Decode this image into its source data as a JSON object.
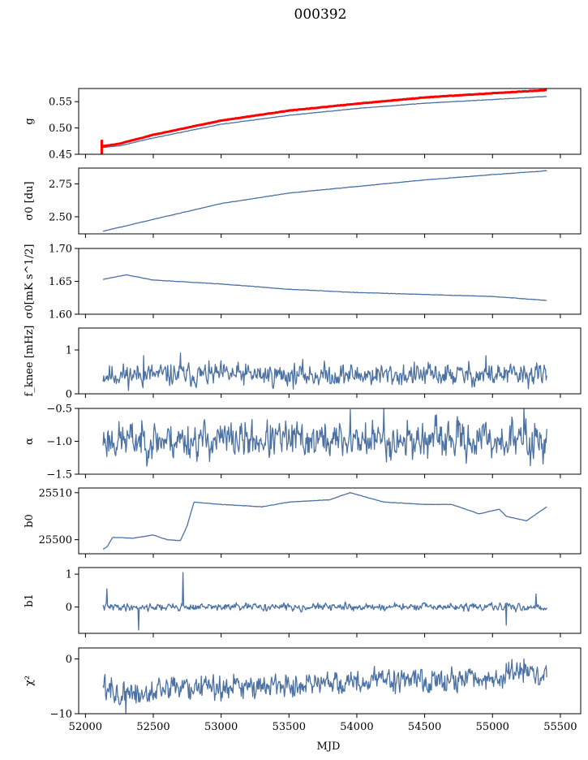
{
  "figure": {
    "title": "000392",
    "xlabel": "MJD"
  },
  "colors": {
    "series": "#4c72a4",
    "highlight": "#ff0000",
    "frame": "#000000"
  },
  "chart_data": {
    "type": "line",
    "x_range": [
      51950,
      55650
    ],
    "x_ticks": [
      52000,
      52500,
      53000,
      53500,
      54000,
      54500,
      55000,
      55500
    ],
    "x_tick_labels": [
      "52000",
      "52500",
      "53000",
      "53500",
      "54000",
      "54500",
      "55000",
      "55500"
    ],
    "xlabel": "MJD",
    "title": "000392",
    "panels": [
      {
        "key": "g",
        "ylabel": "g",
        "ylim": [
          0.45,
          0.575
        ],
        "yticks": [
          0.45,
          0.5,
          0.55
        ],
        "ytick_labels": [
          "0.45",
          "0.50",
          "0.55"
        ],
        "series": [
          {
            "color": "series",
            "style": "thin",
            "x": [
              52120,
              52250,
              52500,
              53000,
              53500,
              54000,
              54500,
              55000,
              55400
            ],
            "y": [
              0.463,
              0.466,
              0.481,
              0.507,
              0.524,
              0.537,
              0.547,
              0.554,
              0.56
            ]
          },
          {
            "color": "highlight",
            "style": "thick",
            "x": [
              52120,
              52250,
              52500,
              53000,
              53500,
              54000,
              54500,
              55000,
              55400
            ],
            "y": [
              0.465,
              0.47,
              0.487,
              0.514,
              0.533,
              0.546,
              0.558,
              0.566,
              0.572
            ]
          }
        ]
      },
      {
        "key": "sigma0_du",
        "ylabel": "σ0 [du]",
        "ylim": [
          2.37,
          2.87
        ],
        "yticks": [
          2.5,
          2.75
        ],
        "ytick_labels": [
          "2.50",
          "2.75"
        ],
        "series": [
          {
            "color": "series",
            "style": "thin",
            "x": [
              52130,
              52500,
              53000,
              53500,
              54000,
              54500,
              55000,
              55400
            ],
            "y": [
              2.39,
              2.48,
              2.6,
              2.68,
              2.73,
              2.78,
              2.82,
              2.85
            ]
          }
        ]
      },
      {
        "key": "sigma0_mk",
        "ylabel": "σ0[mK s^1/2]",
        "ylim": [
          1.6,
          1.7
        ],
        "yticks": [
          1.6,
          1.65,
          1.7
        ],
        "ytick_labels": [
          "1.60",
          "1.65",
          "1.70"
        ],
        "series": [
          {
            "color": "series",
            "style": "thin",
            "x": [
              52130,
              52300,
              52500,
              53000,
              53500,
              54000,
              54500,
              55000,
              55400
            ],
            "y": [
              1.653,
              1.66,
              1.652,
              1.646,
              1.638,
              1.633,
              1.63,
              1.627,
              1.621
            ]
          }
        ]
      },
      {
        "key": "fknee",
        "ylabel": "f_knee [mHz]",
        "ylim": [
          0,
          1.5
        ],
        "yticks": [
          0,
          1
        ],
        "ytick_labels": [
          "0",
          "1"
        ],
        "series": [
          {
            "color": "series",
            "style": "noisy",
            "x": [
              52130,
              55400
            ],
            "y": [
              0.43,
              0.43
            ],
            "noise_amplitude": 0.12,
            "seed": 11,
            "spikes": [
              [
                52700,
                0.93
              ],
              [
                52430,
                0.87
              ],
              [
                54950,
                0.87
              ]
            ]
          }
        ]
      },
      {
        "key": "alpha",
        "ylabel": "α",
        "ylim": [
          -1.5,
          -0.5
        ],
        "yticks": [
          -1.5,
          -1.0,
          -0.5
        ],
        "ytick_labels": [
          "−1.5",
          "−1.0",
          "−0.5"
        ],
        "series": [
          {
            "color": "series",
            "style": "noisy",
            "x": [
              52130,
              55400
            ],
            "y": [
              -0.98,
              -0.98
            ],
            "noise_amplitude": 0.13,
            "seed": 23,
            "spikes": [
              [
                53950,
                -0.52
              ],
              [
                54200,
                -0.5
              ],
              [
                55230,
                -0.5
              ],
              [
                55280,
                -1.37
              ]
            ]
          }
        ]
      },
      {
        "key": "b0",
        "ylabel": "b0",
        "ylim": [
          25497,
          25511
        ],
        "yticks": [
          25500,
          25510
        ],
        "ytick_labels": [
          "25500",
          "25510"
        ],
        "series": [
          {
            "color": "series",
            "style": "thin",
            "x": [
              52130,
              52160,
              52200,
              52350,
              52500,
              52600,
              52700,
              52750,
              52800,
              53000,
              53300,
              53500,
              53800,
              53950,
              54200,
              54500,
              54700,
              54900,
              55050,
              55100,
              55250,
              55400
            ],
            "y": [
              25498,
              25498.5,
              25500.5,
              25500.3,
              25501,
              25500,
              25499.8,
              25503,
              25508,
              25507.5,
              25507,
              25508,
              25508.5,
              25510,
              25508,
              25507.5,
              25507.5,
              25505.5,
              25506.5,
              25505,
              25504,
              25507
            ]
          }
        ]
      },
      {
        "key": "b1",
        "ylabel": "b1",
        "ylim": [
          -0.8,
          1.2
        ],
        "yticks": [
          0,
          1
        ],
        "ytick_labels": [
          "0",
          "1"
        ],
        "series": [
          {
            "color": "series",
            "style": "noisy",
            "x": [
              52130,
              55400
            ],
            "y": [
              0.0,
              0.0
            ],
            "noise_amplitude": 0.05,
            "seed": 41,
            "spikes": [
              [
                52160,
                0.55
              ],
              [
                52390,
                -0.7
              ],
              [
                52720,
                1.05
              ],
              [
                55100,
                -0.55
              ],
              [
                55320,
                0.4
              ]
            ]
          }
        ]
      },
      {
        "key": "chi2",
        "ylabel": "χ²",
        "ylim": [
          -10,
          2
        ],
        "yticks": [
          -10,
          0
        ],
        "ytick_labels": [
          "−10",
          "0"
        ],
        "series": [
          {
            "color": "series",
            "style": "noisy",
            "x": [
              52130,
              52250,
              52400,
              52700,
              53000,
              53500,
              54000,
              54500,
              55000,
              55250,
              55400
            ],
            "y": [
              -5,
              -6,
              -7,
              -5,
              -5,
              -4.5,
              -4,
              -4,
              -4,
              -2,
              -4
            ],
            "noise_amplitude": 1.1,
            "seed": 57,
            "spikes": [
              [
                52300,
                -10
              ],
              [
                55230,
                0
              ]
            ]
          }
        ]
      }
    ]
  }
}
